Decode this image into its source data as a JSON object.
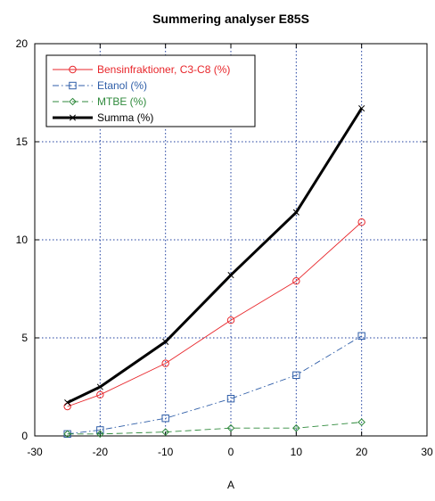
{
  "chart_data": {
    "type": "line",
    "title": "Summering analyser E85S",
    "xlabel": "A",
    "ylabel": "",
    "xlim": [
      -30,
      30
    ],
    "ylim": [
      0,
      20
    ],
    "xticks": [
      -30,
      -20,
      -10,
      0,
      10,
      20,
      30
    ],
    "yticks": [
      0,
      5,
      10,
      15,
      20
    ],
    "grid": true,
    "legend_position": "top-left",
    "x": [
      -25,
      -20,
      -10,
      0,
      10,
      20
    ],
    "series": [
      {
        "name": "Bensinfraktioner, C3-C8 (%)",
        "color": "#e8262b",
        "marker": "circle",
        "line": "solid-thin",
        "values": [
          1.5,
          2.1,
          3.7,
          5.9,
          7.9,
          10.9
        ]
      },
      {
        "name": "Etanol (%)",
        "color": "#2f5ea8",
        "marker": "square",
        "line": "dash-dot",
        "values": [
          0.1,
          0.3,
          0.9,
          1.9,
          3.1,
          5.1
        ]
      },
      {
        "name": "MTBE (%)",
        "color": "#2f8a3c",
        "marker": "diamond",
        "line": "dashed",
        "values": [
          0.1,
          0.1,
          0.2,
          0.4,
          0.4,
          0.7
        ]
      },
      {
        "name": "Summa (%)",
        "color": "#000000",
        "marker": "x",
        "line": "solid-thick",
        "values": [
          1.7,
          2.5,
          4.8,
          8.2,
          11.4,
          16.7
        ]
      }
    ]
  }
}
